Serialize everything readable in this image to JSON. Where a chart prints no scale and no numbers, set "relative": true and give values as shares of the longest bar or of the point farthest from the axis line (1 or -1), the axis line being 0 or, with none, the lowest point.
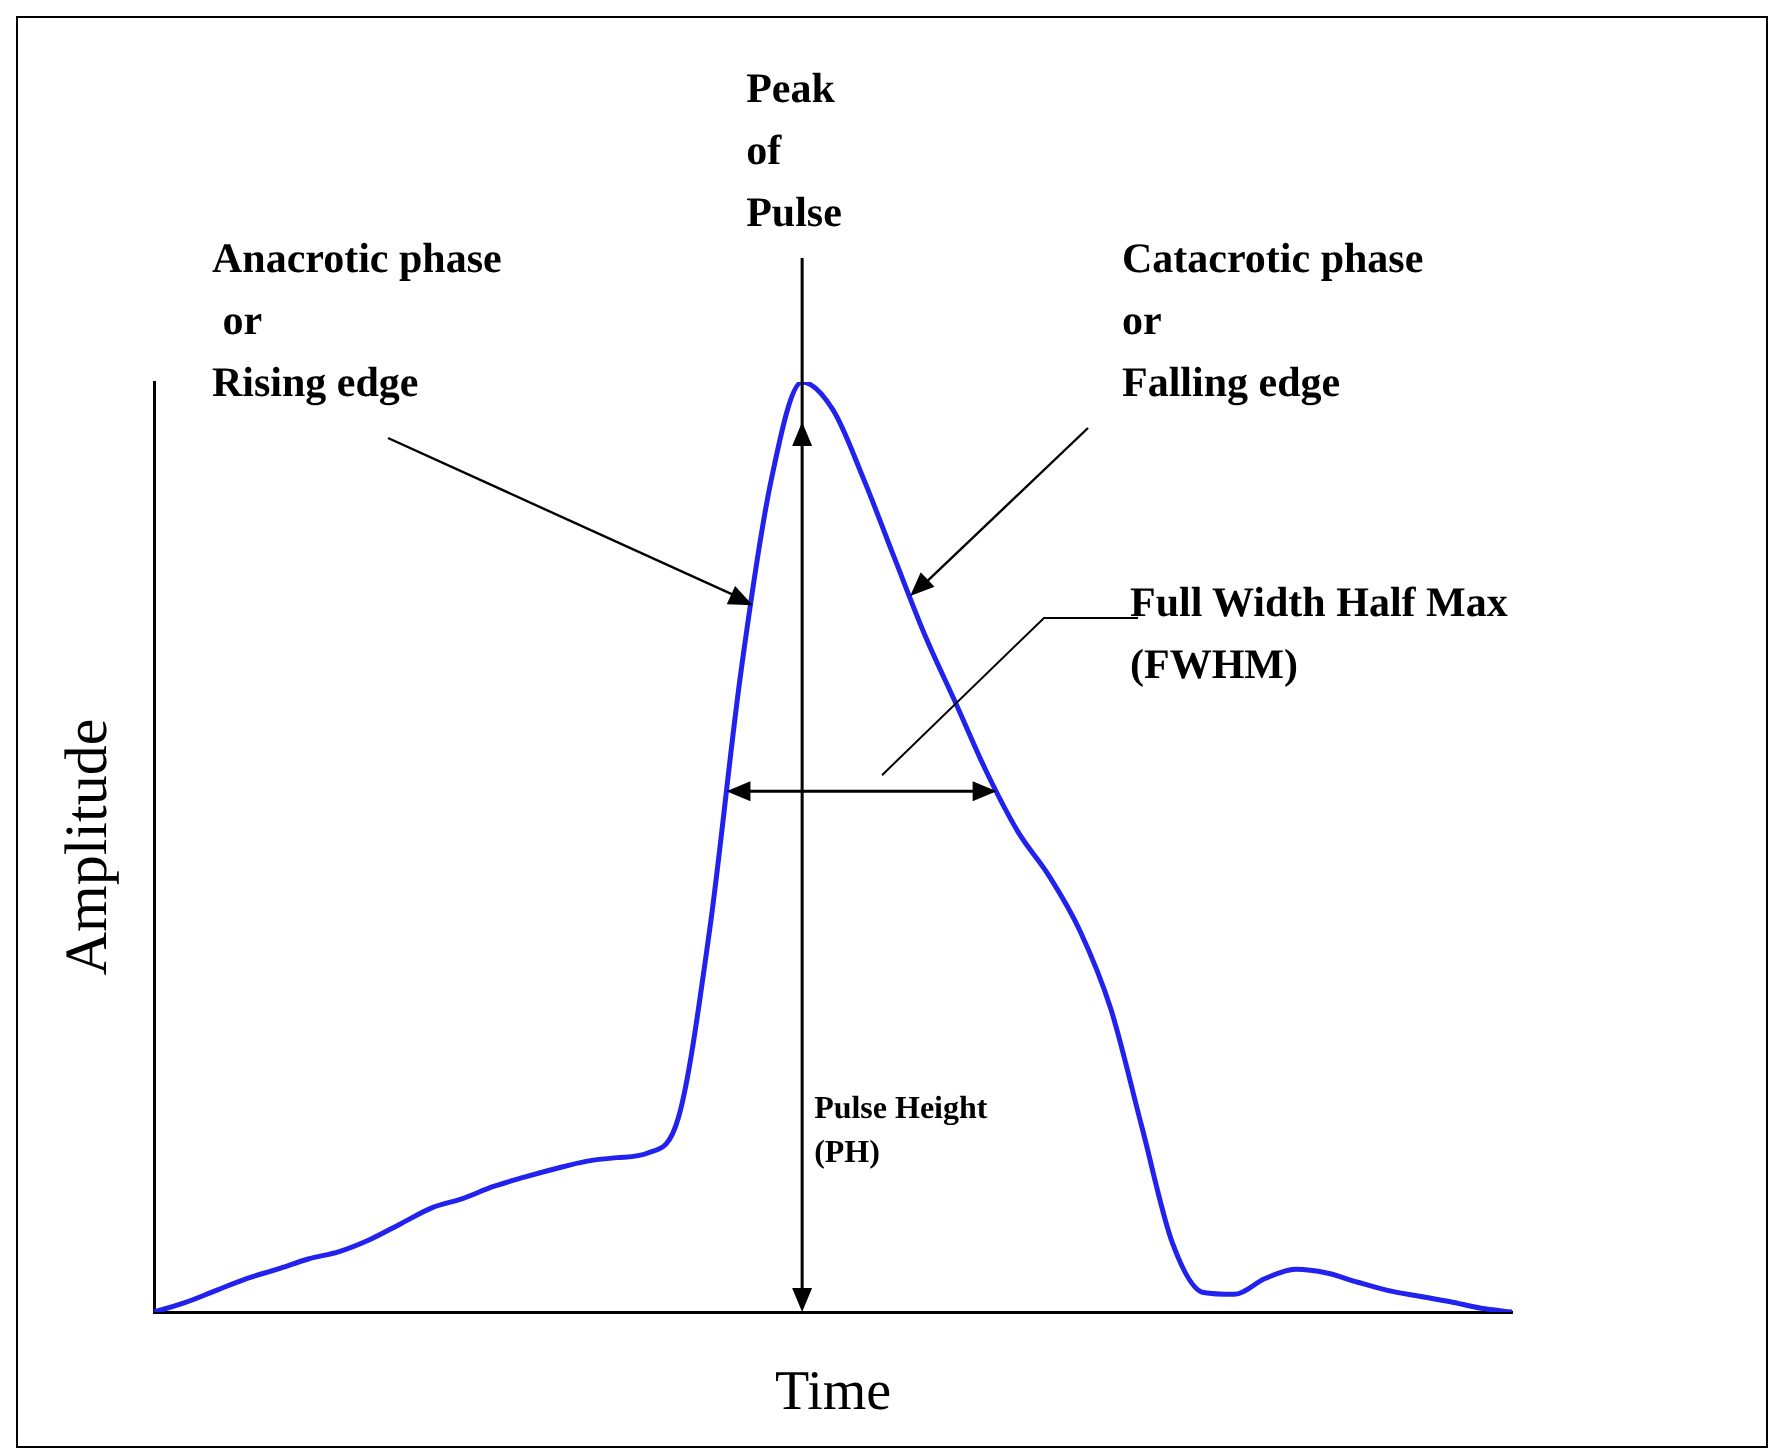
{
  "chart_data": {
    "type": "line",
    "relative": true,
    "xlabel": "Time",
    "ylabel": "Amplitude",
    "legend": false,
    "grid": false,
    "marker": "none",
    "line_style": "solid",
    "categories": [
      null,
      null,
      null,
      null,
      null,
      null,
      null,
      null,
      null,
      null,
      null,
      null,
      null,
      null,
      null,
      null,
      null,
      null,
      null,
      null,
      null,
      null,
      null,
      null,
      null,
      null,
      null,
      null,
      null,
      null,
      null,
      null,
      null,
      null,
      null,
      null,
      null,
      null,
      null,
      null,
      null,
      null,
      null,
      null,
      null
    ],
    "series": [
      {
        "color": "#2222ee",
        "values": [
          0,
          0.01,
          0.023,
          0.036,
          0.046,
          0.057,
          0.065,
          0.078,
          0.095,
          0.112,
          0.122,
          0.135,
          0.145,
          0.154,
          0.162,
          0.166,
          0.171,
          0.21,
          0.41,
          0.684,
          0.895,
          1,
          0.97,
          0.895,
          0.81,
          0.726,
          0.653,
          0.579,
          0.516,
          0.469,
          0.41,
          0.326,
          0.2,
          0.074,
          0.021,
          0.019,
          0.036,
          0.046,
          0.042,
          0.032,
          0.023,
          0.017,
          0.011,
          0.004,
          0
        ]
      }
    ],
    "annotations": [
      "Peak\nof\nPulse",
      "Anacrotic phase\n or\nRising edge",
      "Catacrotic phase\nor\nFalling edge",
      "Full Width Half Max\n(FWHM)",
      "Pulse Height\n(PH)"
    ]
  }
}
